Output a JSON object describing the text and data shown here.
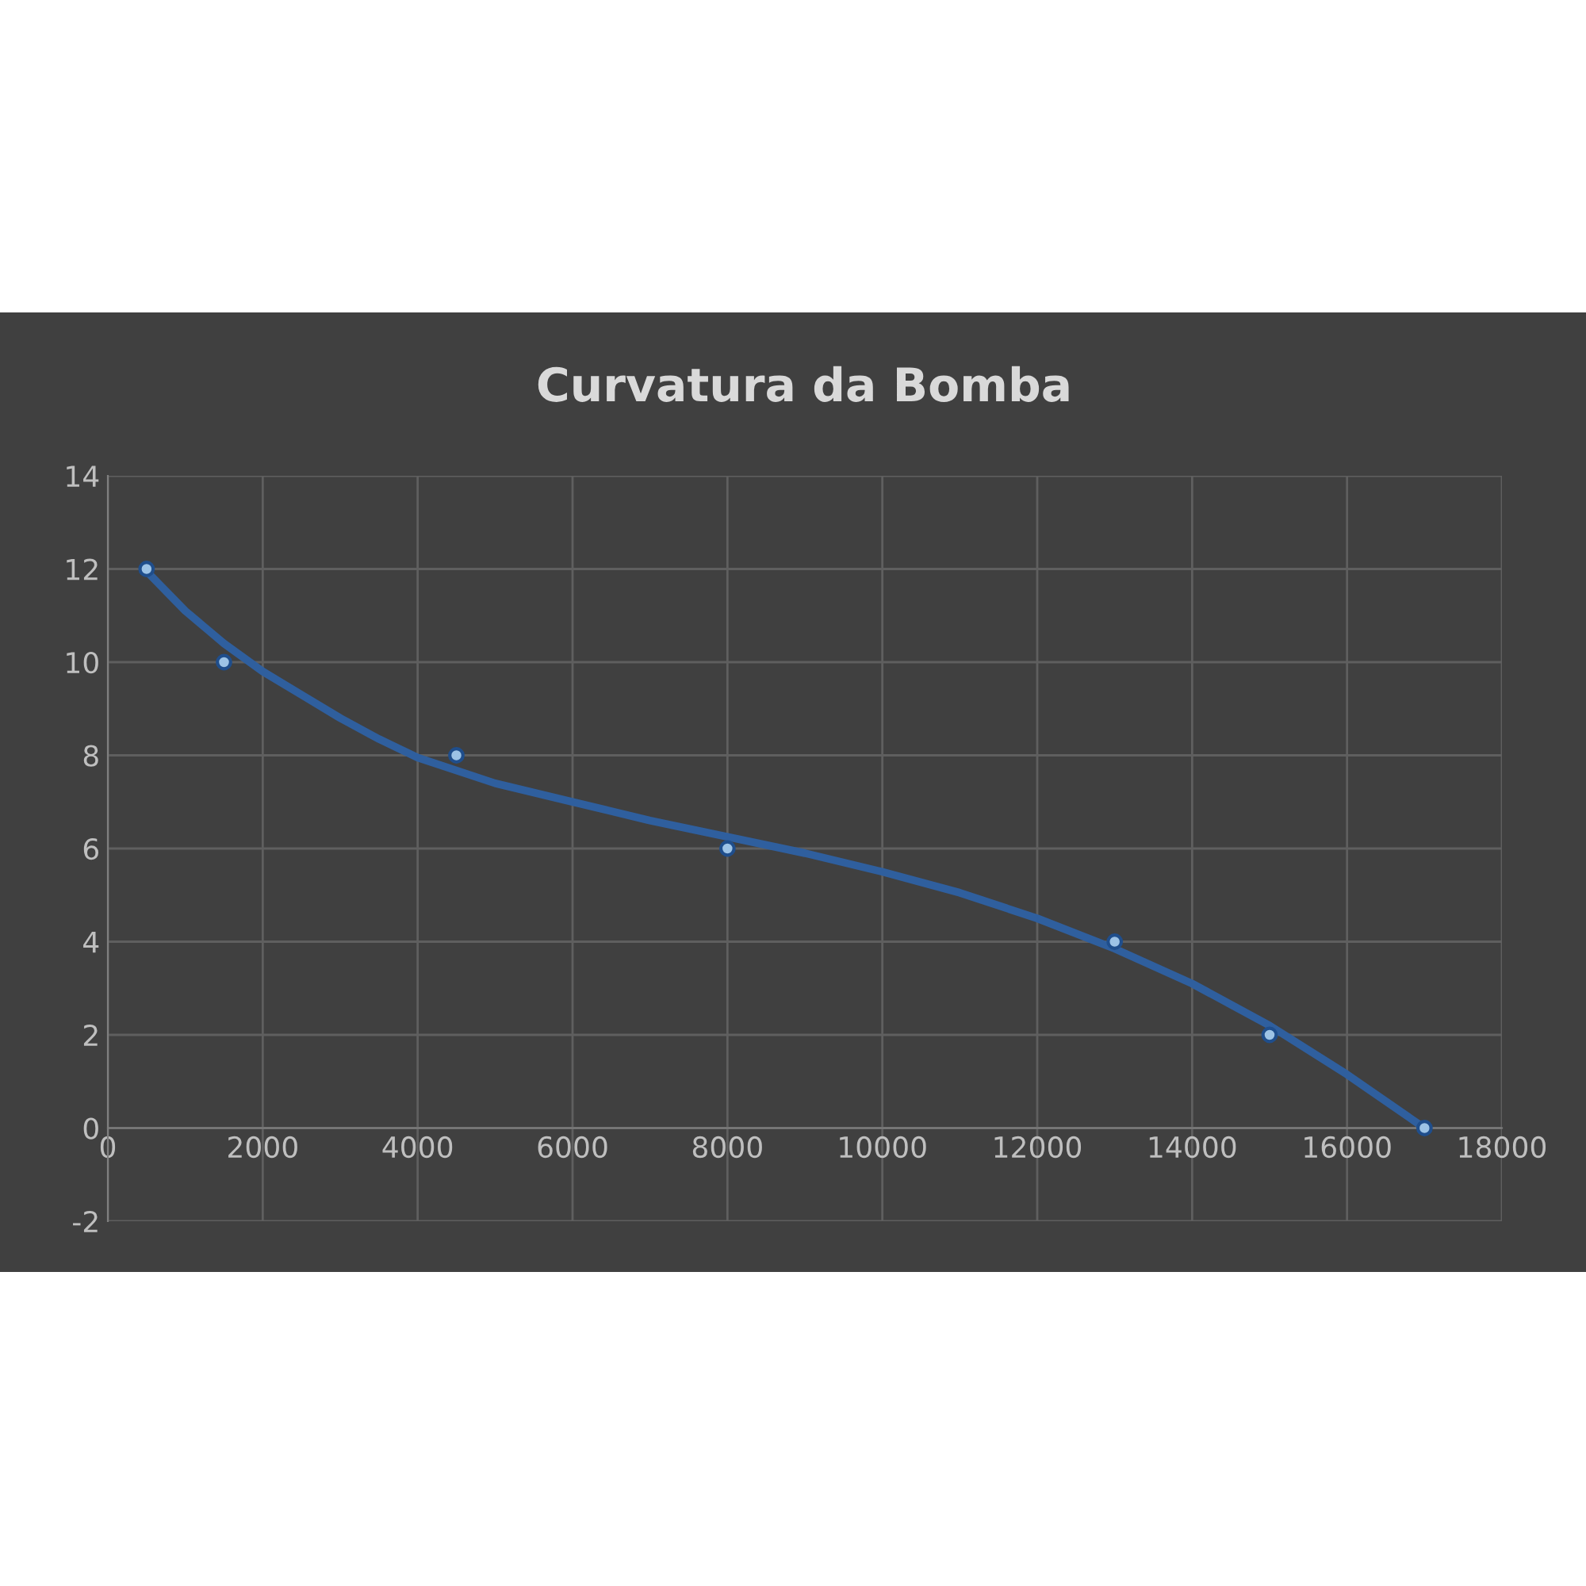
{
  "chart_data": {
    "type": "scatter",
    "title": "Curvatura da Bomba",
    "series": [
      {
        "color": "#9dc3e6",
        "x": [
          500,
          1500,
          4500,
          8000,
          13000,
          15000,
          17000
        ],
        "values": [
          12,
          10,
          8,
          6,
          4,
          2,
          0
        ],
        "marker": "circle"
      },
      {
        "type": "line",
        "color": "#2f5f9e",
        "x": [
          500,
          1000,
          1500,
          2000,
          2500,
          3000,
          3500,
          4000,
          5000,
          6000,
          7000,
          8000,
          9000,
          10000,
          11000,
          12000,
          13000,
          14000,
          15000,
          16000,
          17000
        ],
        "values": [
          11.95,
          11.1,
          10.4,
          9.8,
          9.3,
          8.8,
          8.35,
          7.95,
          7.4,
          7.0,
          6.6,
          6.25,
          5.9,
          5.5,
          5.05,
          4.5,
          3.85,
          3.1,
          2.2,
          1.15,
          0
        ],
        "line_style": "solid"
      }
    ],
    "xlim": [
      0,
      18000
    ],
    "xticks": [
      0,
      2000,
      4000,
      6000,
      8000,
      10000,
      12000,
      14000,
      16000,
      18000
    ],
    "ylim": [
      -2,
      14
    ],
    "yticks": [
      -2,
      0,
      2,
      4,
      6,
      8,
      10,
      12,
      14
    ],
    "grid": true,
    "legend": false
  }
}
